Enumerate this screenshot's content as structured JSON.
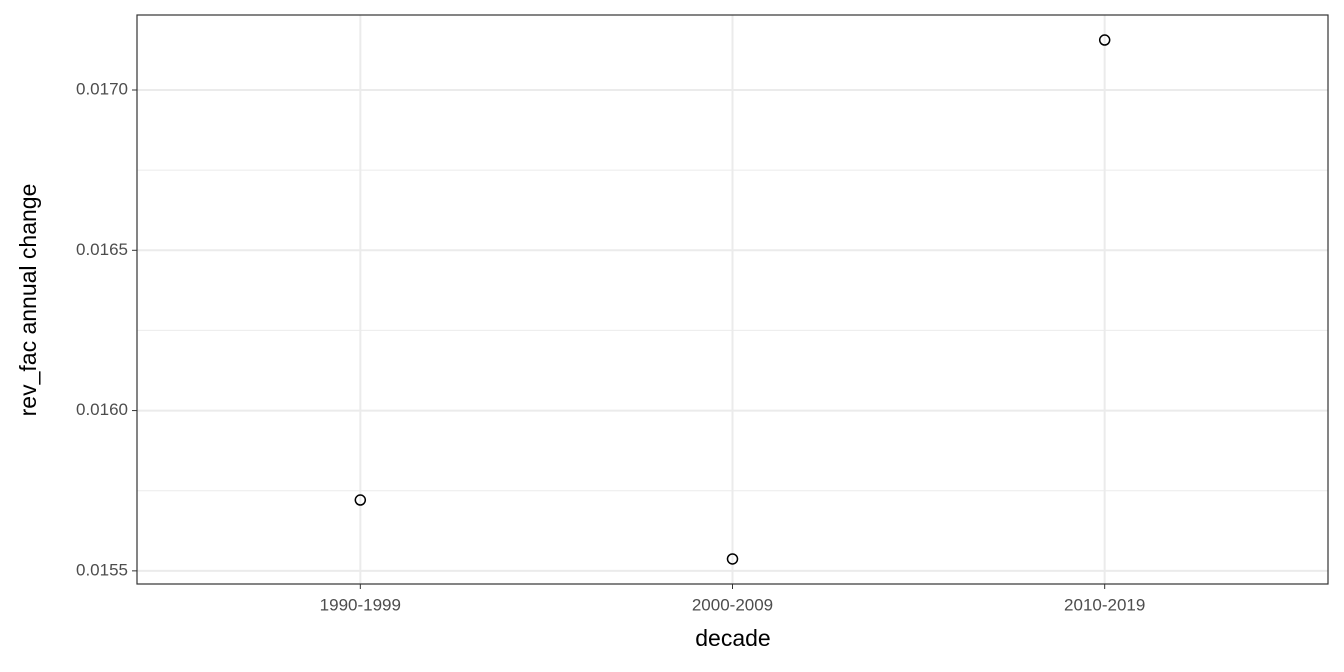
{
  "chart_data": {
    "type": "scatter",
    "x_label": "decade",
    "y_label": "rev_fac annual change",
    "categories": [
      "1990-1999",
      "2000-2009",
      "2010-2019"
    ],
    "values": [
      0.015721,
      0.015537,
      0.017156
    ],
    "color": "#000000",
    "ylim": [
      0.015459,
      0.017234
    ],
    "yticks": [
      0.0155,
      {
        "value": 0.016,
        "label": "0.0160"
      },
      0.0165,
      {
        "value": 0.017,
        "label": "0.0170"
      }
    ],
    "grid": true,
    "minor_grid": true
  }
}
